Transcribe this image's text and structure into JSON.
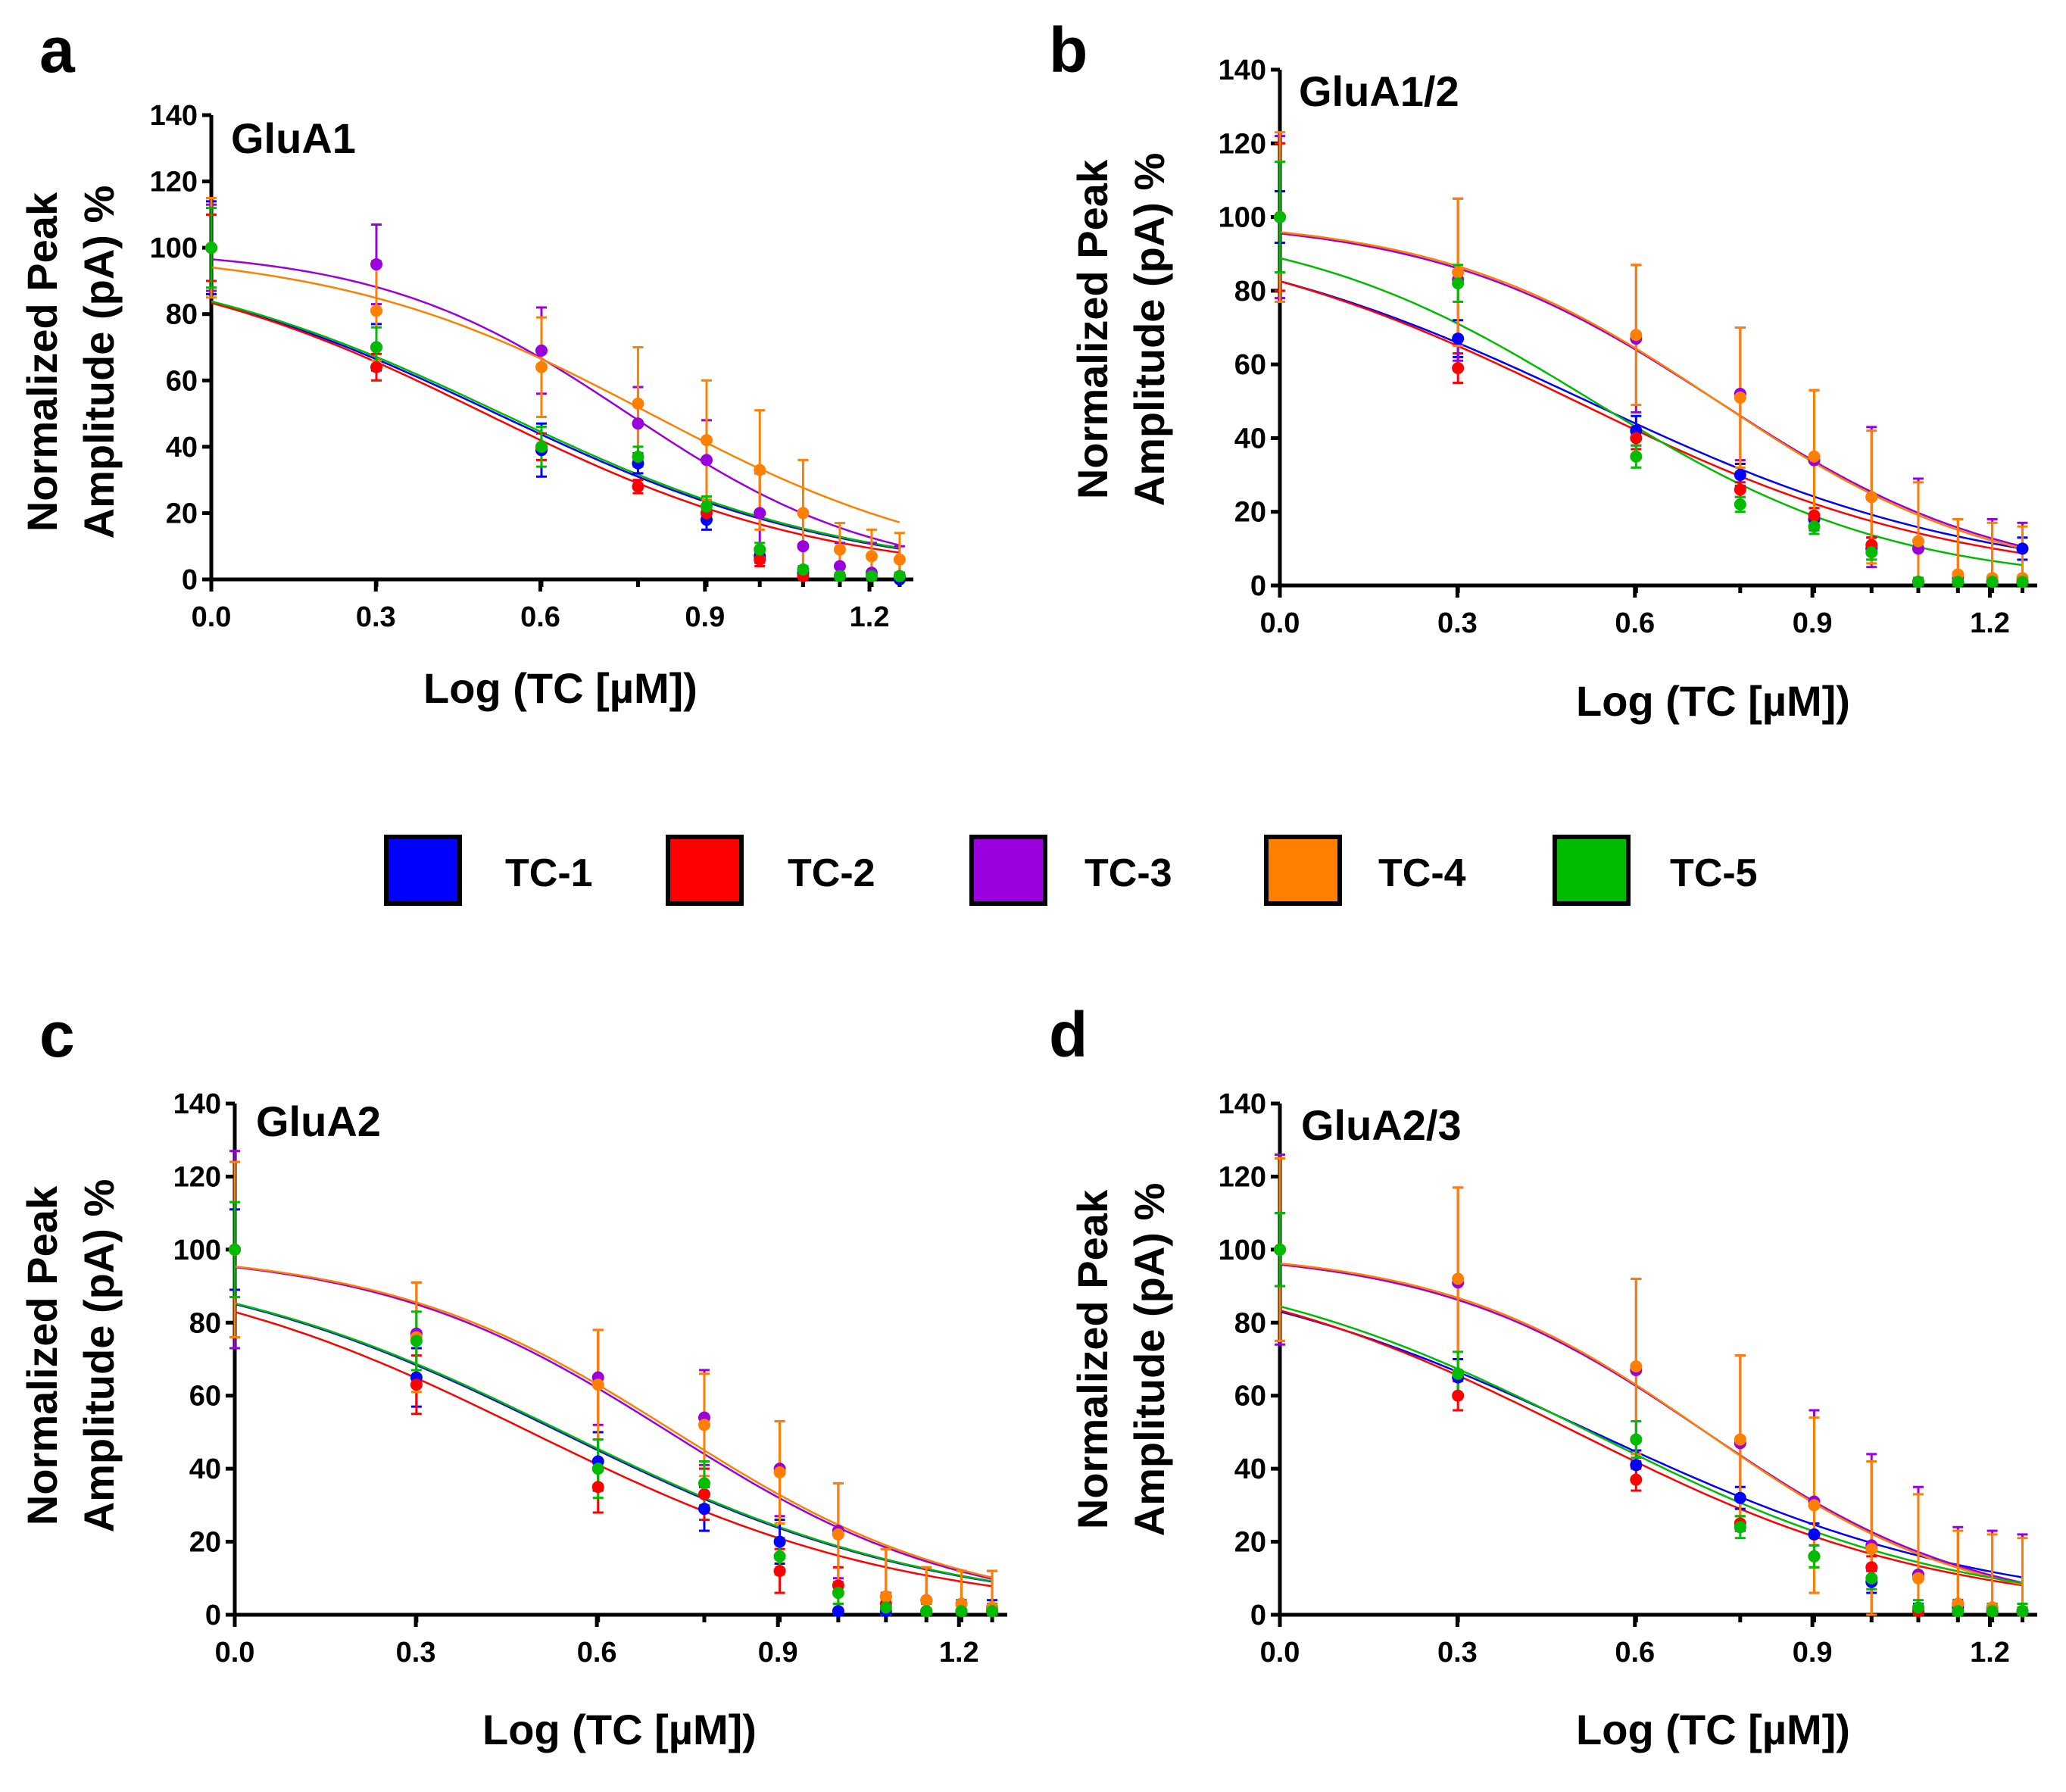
{
  "chart_data": [
    {
      "type": "line",
      "panel": "a",
      "title": "GluA1",
      "xlabel": "Log (TC [µM])",
      "ylabel": [
        "Normalized Peak",
        "Amplitude (pA) %"
      ],
      "xlim": [
        0,
        1.28
      ],
      "ylim": [
        0,
        140
      ],
      "xticks": [
        "0.0",
        "0.3",
        "0.6",
        "0.9",
        "1.2"
      ],
      "yticks": [
        "0",
        "20",
        "40",
        "60",
        "80",
        "100",
        "120",
        "140"
      ],
      "x": [
        0,
        0.301,
        0.602,
        0.778,
        0.903,
        1.0,
        1.079,
        1.146,
        1.204,
        1.255
      ],
      "series": [
        {
          "name": "TC-1",
          "color": "#0000ff",
          "values": [
            100,
            70,
            39,
            35,
            18,
            7,
            2,
            1,
            1,
            0
          ],
          "errors": [
            14,
            7,
            8,
            3,
            3,
            2,
            1,
            1,
            1,
            1
          ],
          "fit": {
            "top": 100,
            "bottom": 0,
            "log_ic50": 0.52,
            "hill": 1.35
          }
        },
        {
          "name": "TC-2",
          "color": "#ff0000",
          "values": [
            100,
            64,
            40,
            28,
            20,
            6,
            1,
            1,
            1,
            1
          ],
          "errors": [
            10,
            4,
            4,
            2,
            2,
            2,
            1,
            1,
            1,
            1
          ],
          "fit": {
            "top": 100,
            "bottom": 0,
            "log_ic50": 0.5,
            "hill": 1.4
          }
        },
        {
          "name": "TC-3",
          "color": "#9900dd",
          "values": [
            100,
            95,
            69,
            47,
            36,
            20,
            10,
            4,
            2,
            1
          ],
          "errors": [
            13,
            12,
            13,
            11,
            12,
            12,
            10,
            7,
            9,
            9
          ],
          "fit": {
            "top": 100,
            "bottom": 0,
            "log_ic50": 0.76,
            "hill": 1.9
          }
        },
        {
          "name": "TC-4",
          "color": "#ff8000",
          "values": [
            100,
            81,
            64,
            53,
            42,
            33,
            20,
            9,
            7,
            6
          ],
          "errors": [
            15,
            15,
            15,
            17,
            18,
            18,
            16,
            8,
            8,
            8
          ],
          "fit": {
            "top": 100,
            "bottom": 0,
            "log_ic50": 0.8,
            "hill": 1.5
          }
        },
        {
          "name": "TC-5",
          "color": "#00bb00",
          "values": [
            100,
            70,
            40,
            37,
            22,
            9,
            3,
            1,
            1,
            1
          ],
          "errors": [
            12,
            6,
            6,
            3,
            3,
            2,
            1,
            1,
            1,
            1
          ],
          "fit": {
            "top": 100,
            "bottom": 0,
            "log_ic50": 0.53,
            "hill": 1.35
          }
        }
      ]
    },
    {
      "type": "line",
      "panel": "b",
      "title": "GluA1/2",
      "xlabel": "Log (TC [µM])",
      "ylabel": [
        "Normalized Peak",
        "Amplitude (pA) %"
      ],
      "xlim": [
        0,
        1.28
      ],
      "ylim": [
        0,
        140
      ],
      "xticks": [
        "0.0",
        "0.3",
        "0.6",
        "0.9",
        "1.2"
      ],
      "yticks": [
        "0",
        "20",
        "40",
        "60",
        "80",
        "100",
        "120",
        "140"
      ],
      "x": [
        0,
        0.301,
        0.602,
        0.778,
        0.903,
        1.0,
        1.079,
        1.146,
        1.204,
        1.255
      ],
      "series": [
        {
          "name": "TC-1",
          "color": "#0000ff",
          "values": [
            100,
            67,
            42,
            30,
            18,
            10,
            1,
            1,
            1,
            10
          ],
          "errors": [
            7,
            5,
            4,
            3,
            3,
            3,
            1,
            1,
            1,
            3
          ],
          "fit": {
            "top": 100,
            "bottom": 0,
            "log_ic50": 0.52,
            "hill": 1.3
          }
        },
        {
          "name": "TC-2",
          "color": "#ff0000",
          "values": [
            100,
            59,
            40,
            26,
            19,
            11,
            1,
            1,
            1,
            1
          ],
          "errors": [
            20,
            4,
            3,
            2,
            2,
            2,
            1,
            1,
            1,
            1
          ],
          "fit": {
            "top": 100,
            "bottom": 0,
            "log_ic50": 0.5,
            "hill": 1.35
          }
        },
        {
          "name": "TC-3",
          "color": "#9900dd",
          "values": [
            100,
            83,
            67,
            52,
            34,
            24,
            10,
            2,
            1,
            1
          ],
          "errors": [
            22,
            22,
            20,
            18,
            19,
            19,
            19,
            16,
            17,
            16
          ],
          "fit": {
            "top": 100,
            "bottom": 0,
            "log_ic50": 0.74,
            "hill": 1.8
          }
        },
        {
          "name": "TC-4",
          "color": "#ff8000",
          "values": [
            100,
            85,
            68,
            51,
            35,
            24,
            12,
            3,
            2,
            2
          ],
          "errors": [
            23,
            20,
            19,
            19,
            18,
            18,
            16,
            15,
            15,
            14
          ],
          "fit": {
            "top": 100,
            "bottom": 0,
            "log_ic50": 0.74,
            "hill": 1.85
          }
        },
        {
          "name": "TC-5",
          "color": "#00bb00",
          "values": [
            100,
            82,
            35,
            22,
            16,
            9,
            1,
            1,
            1,
            1
          ],
          "errors": [
            15,
            5,
            3,
            2,
            2,
            2,
            1,
            1,
            1,
            1
          ],
          "fit": {
            "top": 100,
            "bottom": 0,
            "log_ic50": 0.53,
            "hill": 1.7
          }
        }
      ]
    },
    {
      "type": "line",
      "panel": "c",
      "title": "GluA2",
      "xlabel": "Log (TC [µM])",
      "ylabel": [
        "Normalized Peak",
        "Amplitude (pA) %"
      ],
      "xlim": [
        0,
        1.28
      ],
      "ylim": [
        0,
        140
      ],
      "xticks": [
        "0.0",
        "0.3",
        "0.6",
        "0.9",
        "1.2"
      ],
      "yticks": [
        "0",
        "20",
        "40",
        "60",
        "80",
        "100",
        "120",
        "140"
      ],
      "x": [
        0,
        0.301,
        0.602,
        0.778,
        0.903,
        1.0,
        1.079,
        1.146,
        1.204,
        1.255
      ],
      "series": [
        {
          "name": "TC-1",
          "color": "#0000ff",
          "values": [
            100,
            65,
            42,
            29,
            20,
            1,
            1,
            1,
            1,
            1
          ],
          "errors": [
            11,
            8,
            8,
            6,
            6,
            2,
            2,
            3,
            3,
            3
          ],
          "fit": {
            "top": 100,
            "bottom": 0,
            "log_ic50": 0.54,
            "hill": 1.4
          }
        },
        {
          "name": "TC-2",
          "color": "#ff0000",
          "values": [
            100,
            63,
            35,
            33,
            12,
            8,
            3,
            1,
            1,
            1
          ],
          "errors": [
            24,
            8,
            7,
            7,
            6,
            5,
            3,
            2,
            2,
            2
          ],
          "fit": {
            "top": 100,
            "bottom": 0,
            "log_ic50": 0.49,
            "hill": 1.4
          }
        },
        {
          "name": "TC-3",
          "color": "#9900dd",
          "values": [
            100,
            77,
            65,
            54,
            40,
            23,
            5,
            4,
            3,
            2
          ],
          "errors": [
            27,
            14,
            13,
            13,
            13,
            13,
            13,
            9,
            9,
            10
          ],
          "fit": {
            "top": 100,
            "bottom": 0,
            "log_ic50": 0.72,
            "hill": 1.8
          }
        },
        {
          "name": "TC-4",
          "color": "#ff8000",
          "values": [
            100,
            76,
            63,
            52,
            39,
            22,
            5,
            4,
            3,
            2
          ],
          "errors": [
            24,
            15,
            15,
            14,
            14,
            14,
            13,
            9,
            9,
            10
          ],
          "fit": {
            "top": 100,
            "bottom": 0,
            "log_ic50": 0.73,
            "hill": 1.8
          }
        },
        {
          "name": "TC-5",
          "color": "#00bb00",
          "values": [
            100,
            75,
            40,
            36,
            16,
            6,
            2,
            1,
            1,
            1
          ],
          "errors": [
            13,
            8,
            8,
            6,
            5,
            3,
            2,
            2,
            2,
            2
          ],
          "fit": {
            "top": 100,
            "bottom": 0,
            "log_ic50": 0.545,
            "hill": 1.4
          }
        }
      ]
    },
    {
      "type": "line",
      "panel": "d",
      "title": "GluA2/3",
      "xlabel": "Log (TC [µM])",
      "ylabel": [
        "Normalized Peak",
        "Amplitude (pA) %"
      ],
      "xlim": [
        0,
        1.28
      ],
      "ylim": [
        0,
        140
      ],
      "xticks": [
        "0.0",
        "0.3",
        "0.6",
        "0.9",
        "1.2"
      ],
      "yticks": [
        "0",
        "20",
        "40",
        "60",
        "80",
        "100",
        "120",
        "140"
      ],
      "x": [
        0,
        0.301,
        0.602,
        0.778,
        0.903,
        1.0,
        1.079,
        1.146,
        1.204,
        1.255
      ],
      "series": [
        {
          "name": "TC-1",
          "color": "#0000ff",
          "values": [
            100,
            65,
            41,
            32,
            22,
            9,
            1,
            2,
            1,
            1
          ],
          "errors": [
            10,
            5,
            4,
            3,
            3,
            3,
            2,
            2,
            2,
            2
          ],
          "fit": {
            "top": 100,
            "bottom": 0,
            "log_ic50": 0.53,
            "hill": 1.3
          }
        },
        {
          "name": "TC-2",
          "color": "#ff0000",
          "values": [
            100,
            60,
            37,
            25,
            16,
            13,
            1,
            1,
            1,
            1
          ],
          "errors": [
            25,
            4,
            3,
            2,
            3,
            3,
            1,
            1,
            1,
            1
          ],
          "fit": {
            "top": 100,
            "bottom": 0,
            "log_ic50": 0.5,
            "hill": 1.4
          }
        },
        {
          "name": "TC-3",
          "color": "#9900dd",
          "values": [
            100,
            91,
            67,
            47,
            31,
            19,
            11,
            3,
            2,
            1
          ],
          "errors": [
            26,
            26,
            25,
            24,
            25,
            25,
            24,
            21,
            21,
            21
          ],
          "fit": {
            "top": 100,
            "bottom": 0,
            "log_ic50": 0.72,
            "hill": 1.9
          }
        },
        {
          "name": "TC-4",
          "color": "#ff8000",
          "values": [
            100,
            92,
            68,
            48,
            30,
            18,
            10,
            3,
            2,
            1
          ],
          "errors": [
            25,
            25,
            24,
            23,
            24,
            24,
            23,
            20,
            20,
            20
          ],
          "fit": {
            "top": 100,
            "bottom": 0,
            "log_ic50": 0.72,
            "hill": 1.95
          }
        },
        {
          "name": "TC-5",
          "color": "#00bb00",
          "values": [
            100,
            66,
            48,
            24,
            16,
            10,
            2,
            1,
            1,
            1
          ],
          "errors": [
            10,
            6,
            5,
            3,
            3,
            3,
            2,
            2,
            2,
            2
          ],
          "fit": {
            "top": 100,
            "bottom": 0,
            "log_ic50": 0.525,
            "hill": 1.4
          }
        }
      ]
    }
  ],
  "legend": {
    "items": [
      {
        "label": "TC-1",
        "color": "#0000ff"
      },
      {
        "label": "TC-2",
        "color": "#ff0000"
      },
      {
        "label": "TC-3",
        "color": "#9900dd"
      },
      {
        "label": "TC-4",
        "color": "#ff8000"
      },
      {
        "label": "TC-5",
        "color": "#00bb00"
      }
    ]
  }
}
